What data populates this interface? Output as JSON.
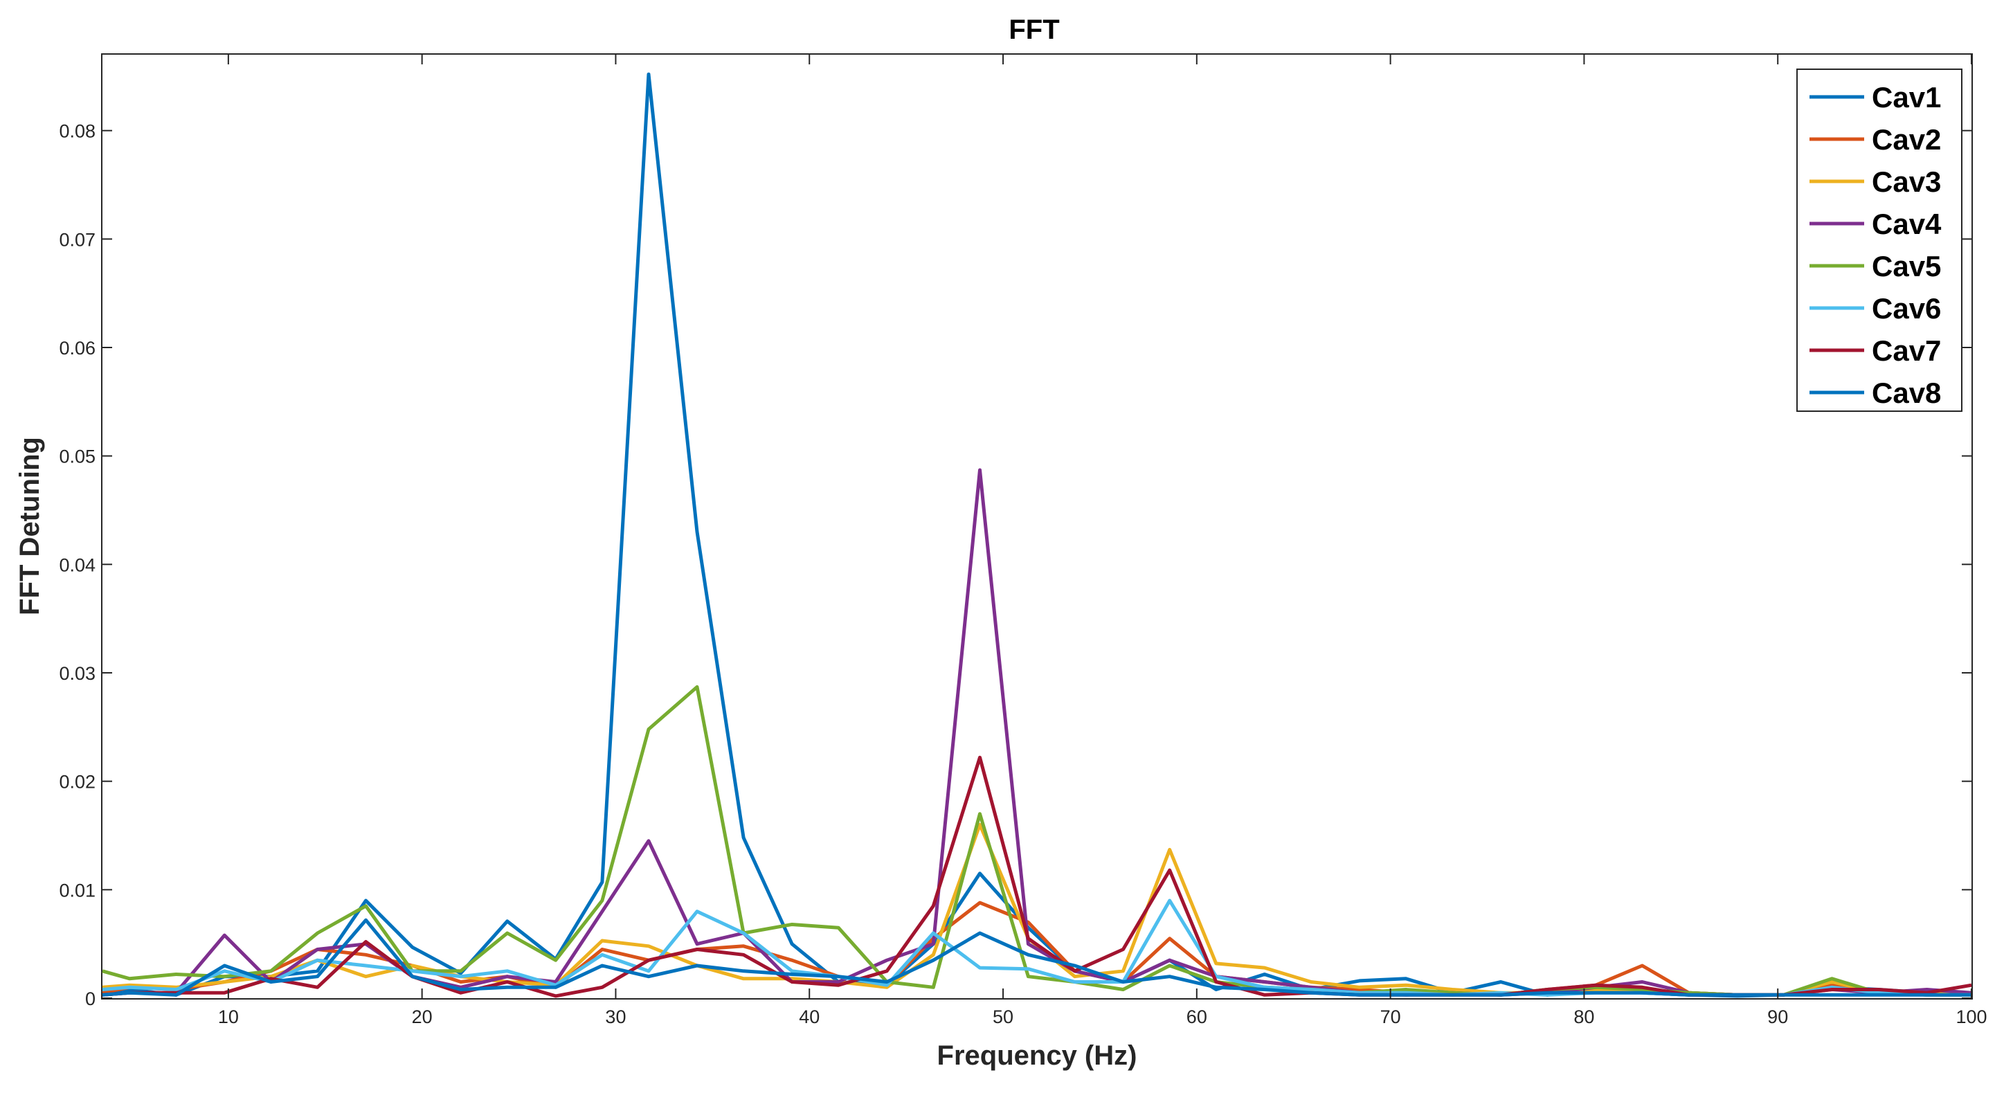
{
  "chart_data": {
    "type": "line",
    "title": "FFT",
    "xlabel": "Frequency (Hz)",
    "ylabel": "FFT Detuning",
    "xlim": [
      3.5,
      100
    ],
    "ylim": [
      0,
      0.087
    ],
    "xticks": [
      10,
      20,
      30,
      40,
      50,
      60,
      70,
      80,
      90,
      100
    ],
    "xtick_labels": [
      "10",
      "20",
      "30",
      "40",
      "50",
      "60",
      "70",
      "80",
      "90",
      "100"
    ],
    "yticks": [
      0,
      0.01,
      0.02,
      0.03,
      0.04,
      0.05,
      0.06,
      0.07,
      0.08
    ],
    "ytick_labels": [
      "0",
      "0.01",
      "0.02",
      "0.03",
      "0.04",
      "0.05",
      "0.06",
      "0.07",
      "0.08"
    ],
    "grid": false,
    "legend_position": "top-right",
    "x": [
      3.5,
      4.9,
      7.3,
      9.8,
      12.2,
      14.6,
      17.1,
      19.5,
      22.0,
      24.4,
      26.9,
      29.3,
      31.7,
      34.2,
      36.6,
      39.1,
      41.5,
      44.0,
      46.4,
      48.8,
      51.3,
      53.7,
      56.2,
      58.6,
      61.0,
      63.5,
      65.9,
      68.4,
      70.8,
      73.2,
      75.7,
      78.1,
      80.6,
      83.0,
      85.4,
      87.9,
      90.3,
      92.8,
      95.2,
      97.7,
      100.0
    ],
    "series": [
      {
        "name": "Cav1",
        "color": "#0072BD",
        "values": [
          0.0005,
          0.0008,
          0.0003,
          0.002,
          0.002,
          0.0025,
          0.009,
          0.0047,
          0.0023,
          0.0071,
          0.0036,
          0.0107,
          0.0852,
          0.043,
          0.0148,
          0.005,
          0.0015,
          0.0012,
          0.005,
          0.0115,
          0.0065,
          0.0025,
          0.0015,
          0.0035,
          0.0008,
          0.0022,
          0.0008,
          0.0016,
          0.0018,
          0.0005,
          0.0015,
          0.0003,
          0.0008,
          0.0005,
          0.0003,
          0.0002,
          0.0003,
          0.001,
          0.0008,
          0.0005,
          0.0003
        ]
      },
      {
        "name": "Cav2",
        "color": "#D95319",
        "values": [
          0.0005,
          0.001,
          0.0008,
          0.0015,
          0.0025,
          0.0045,
          0.004,
          0.003,
          0.0015,
          0.002,
          0.001,
          0.0045,
          0.0035,
          0.0045,
          0.0048,
          0.0035,
          0.002,
          0.0012,
          0.0055,
          0.0088,
          0.007,
          0.0025,
          0.0015,
          0.0055,
          0.002,
          0.0015,
          0.001,
          0.0008,
          0.0005,
          0.0005,
          0.0003,
          0.0008,
          0.0012,
          0.003,
          0.0005,
          0.0003,
          0.0003,
          0.0012,
          0.0005,
          0.0003,
          0.0003
        ]
      },
      {
        "name": "Cav3",
        "color": "#EDB120",
        "values": [
          0.001,
          0.0012,
          0.001,
          0.0015,
          0.002,
          0.0035,
          0.002,
          0.003,
          0.002,
          0.0015,
          0.0012,
          0.0053,
          0.0048,
          0.003,
          0.0018,
          0.0018,
          0.0015,
          0.001,
          0.004,
          0.016,
          0.0055,
          0.002,
          0.0025,
          0.0137,
          0.0032,
          0.0028,
          0.0015,
          0.001,
          0.0012,
          0.0008,
          0.0005,
          0.0005,
          0.0008,
          0.0008,
          0.0005,
          0.0003,
          0.0003,
          0.0015,
          0.0005,
          0.0005,
          0.0005
        ]
      },
      {
        "name": "Cav4",
        "color": "#7E2F8E",
        "values": [
          0.0003,
          0.0005,
          0.0005,
          0.0058,
          0.0015,
          0.0045,
          0.005,
          0.002,
          0.001,
          0.002,
          0.0015,
          0.008,
          0.0145,
          0.005,
          0.006,
          0.0015,
          0.0015,
          0.0035,
          0.005,
          0.0487,
          0.005,
          0.0025,
          0.0015,
          0.0035,
          0.002,
          0.0015,
          0.001,
          0.0005,
          0.0003,
          0.0005,
          0.0003,
          0.0005,
          0.001,
          0.0015,
          0.0005,
          0.0003,
          0.0003,
          0.0008,
          0.0005,
          0.0008,
          0.0005
        ]
      },
      {
        "name": "Cav5",
        "color": "#77AC30",
        "values": [
          0.0025,
          0.0018,
          0.0022,
          0.002,
          0.0025,
          0.006,
          0.0085,
          0.0025,
          0.0025,
          0.006,
          0.0035,
          0.009,
          0.0248,
          0.0287,
          0.006,
          0.0068,
          0.0065,
          0.0015,
          0.001,
          0.017,
          0.002,
          0.0015,
          0.0008,
          0.003,
          0.0015,
          0.001,
          0.0008,
          0.0005,
          0.0008,
          0.0005,
          0.0003,
          0.0008,
          0.001,
          0.0008,
          0.0005,
          0.0003,
          0.0003,
          0.0018,
          0.0005,
          0.0003,
          0.0003
        ]
      },
      {
        "name": "Cav6",
        "color": "#4DBEEE",
        "values": [
          0.0008,
          0.001,
          0.0008,
          0.0025,
          0.0015,
          0.0035,
          0.003,
          0.0025,
          0.002,
          0.0025,
          0.0012,
          0.004,
          0.0025,
          0.008,
          0.006,
          0.0025,
          0.002,
          0.0012,
          0.006,
          0.0028,
          0.0027,
          0.0015,
          0.0015,
          0.009,
          0.002,
          0.001,
          0.0008,
          0.0005,
          0.0005,
          0.0003,
          0.0005,
          0.0003,
          0.0005,
          0.0005,
          0.0003,
          0.0003,
          0.0003,
          0.001,
          0.0005,
          0.0003,
          0.0003
        ]
      },
      {
        "name": "Cav7",
        "color": "#A2142F",
        "values": [
          0.0003,
          0.0005,
          0.0005,
          0.0005,
          0.0018,
          0.001,
          0.0052,
          0.002,
          0.0005,
          0.0015,
          0.0002,
          0.001,
          0.0035,
          0.0045,
          0.004,
          0.0015,
          0.0012,
          0.0025,
          0.0085,
          0.0222,
          0.0055,
          0.0025,
          0.0045,
          0.0118,
          0.0015,
          0.0003,
          0.0005,
          0.0003,
          0.0003,
          0.0003,
          0.0003,
          0.0008,
          0.0012,
          0.001,
          0.0003,
          0.0003,
          0.0003,
          0.0008,
          0.0008,
          0.0005,
          0.0012
        ]
      },
      {
        "name": "Cav8",
        "color": "#0072BD",
        "values": [
          0.0003,
          0.0005,
          0.0003,
          0.003,
          0.0015,
          0.002,
          0.0072,
          0.002,
          0.0008,
          0.001,
          0.001,
          0.003,
          0.002,
          0.003,
          0.0025,
          0.0022,
          0.002,
          0.0015,
          0.0035,
          0.006,
          0.004,
          0.003,
          0.0015,
          0.002,
          0.001,
          0.0008,
          0.0005,
          0.0003,
          0.0003,
          0.0003,
          0.0003,
          0.0005,
          0.0005,
          0.0005,
          0.0003,
          0.0003,
          0.0003,
          0.0003,
          0.0003,
          0.0003,
          0.0003
        ]
      }
    ]
  }
}
